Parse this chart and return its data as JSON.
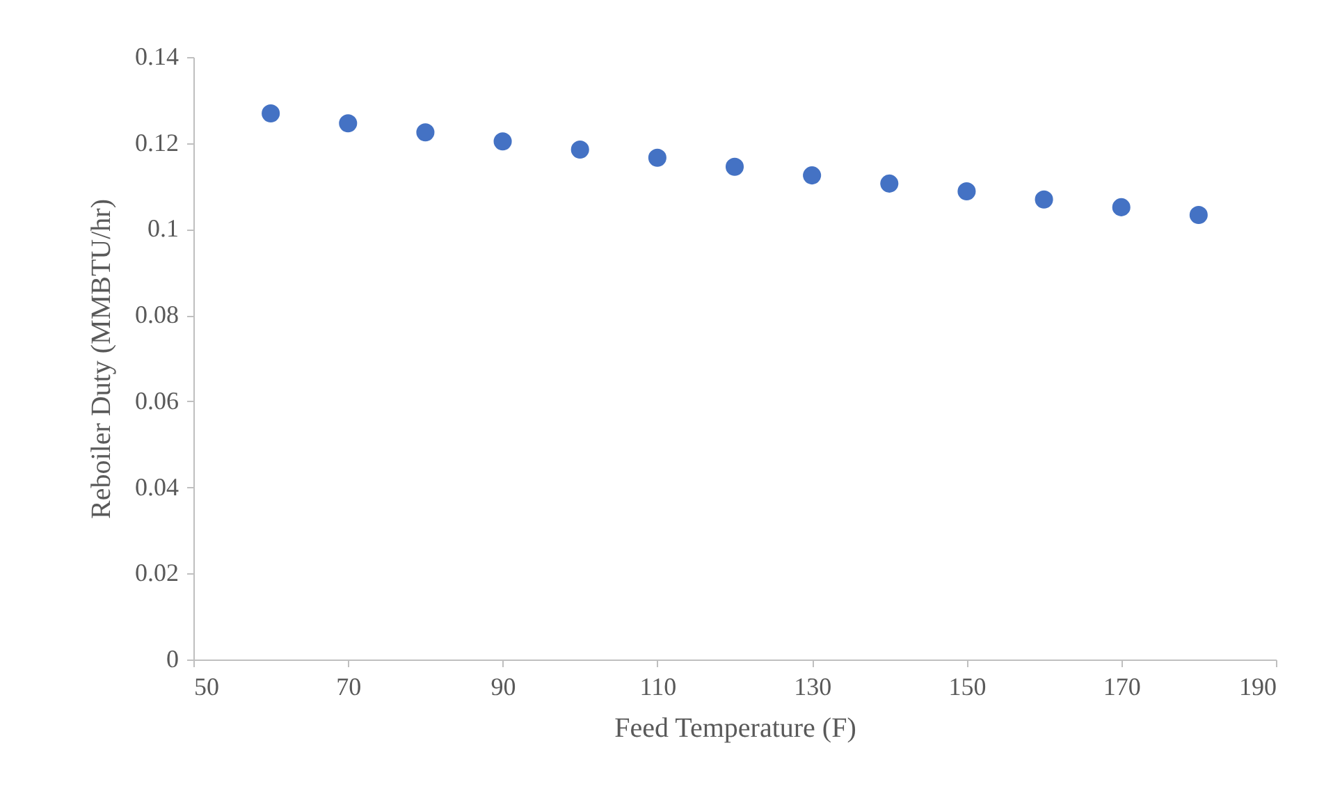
{
  "chart_data": {
    "type": "scatter",
    "xlabel": "Feed Temperature (F)",
    "ylabel": "Reboiler Duty (MMBTU/hr)",
    "x": [
      60,
      70,
      80,
      90,
      100,
      110,
      120,
      130,
      140,
      150,
      160,
      170,
      180
    ],
    "series": [
      {
        "color": "#4472c4",
        "values": [
          0.1269,
          0.1246,
          0.1225,
          0.1204,
          0.1185,
          0.1166,
          0.1145,
          0.1125,
          0.1106,
          0.1088,
          0.1069,
          0.1051,
          0.1033
        ]
      }
    ],
    "xlim": [
      50,
      190
    ],
    "xticks": [
      50,
      70,
      90,
      110,
      130,
      150,
      170,
      190
    ],
    "ylim": [
      0,
      0.14
    ],
    "yticks": [
      0,
      0.02,
      0.04,
      0.06,
      0.08,
      0.1,
      0.12,
      0.14
    ],
    "marker": "circle",
    "grid": false,
    "legend": false
  }
}
